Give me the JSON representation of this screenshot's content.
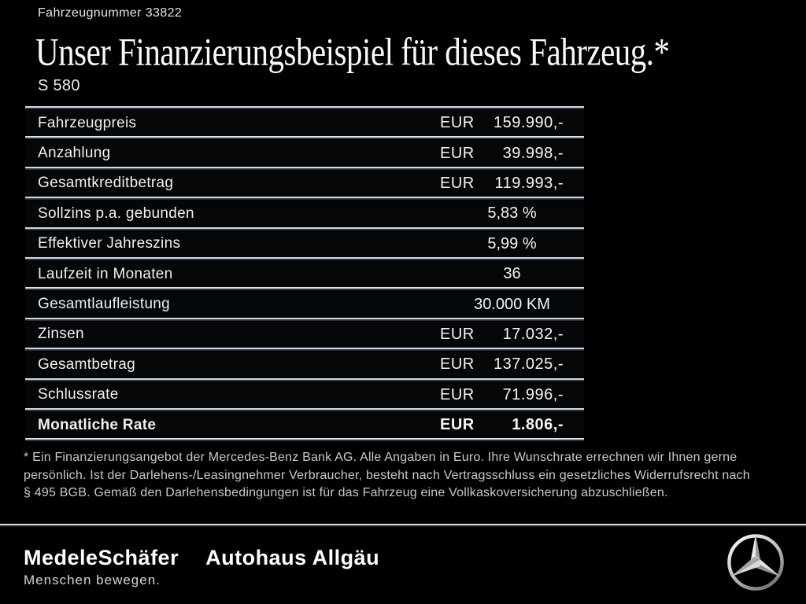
{
  "header": {
    "vehicle_number": "Fahrzeugnummer 33822",
    "title": "Unser Finanzierungsbeispiel für dieses Fahrzeug.*",
    "model": "S 580"
  },
  "table": {
    "rows": [
      {
        "label": "Fahrzeugpreis",
        "currency": "EUR",
        "value": "159.990,-"
      },
      {
        "label": "Anzahlung",
        "currency": "EUR",
        "value": "39.998,-"
      },
      {
        "label": "Gesamtkreditbetrag",
        "currency": "EUR",
        "value": "119.993,-"
      },
      {
        "label": "Sollzins p.a. gebunden",
        "value": "5,83 %"
      },
      {
        "label": "Effektiver Jahreszins",
        "value": "5,99 %"
      },
      {
        "label": "Laufzeit in Monaten",
        "value": "36"
      },
      {
        "label": "Gesamtlaufleistung",
        "value": "30.000 KM"
      },
      {
        "label": "Zinsen",
        "currency": "EUR",
        "value": "17.032,-"
      },
      {
        "label": "Gesamtbetrag",
        "currency": "EUR",
        "value": "137.025,-"
      },
      {
        "label": "Schlussrate",
        "currency": "EUR",
        "value": "71.996,-"
      },
      {
        "label": "Monatliche Rate",
        "currency": "EUR",
        "value": "1.806,-",
        "bold": true
      }
    ]
  },
  "footnote": {
    "lines": [
      "* Ein Finanzierungsangebot der Mercedes-Benz Bank AG. Alle Angaben in Euro. Ihre Wunschrate errechnen wir Ihnen gerne",
      "persönlich. Ist der Darlehens-/Leasingnehmer Verbraucher, besteht nach Vertragsschluss ein gesetzliches Widerrufsrecht nach",
      "§ 495 BGB. Gemäß den Darlehensbedingungen ist für das Fahrzeug eine Vollkaskoversicherung abzuschließen."
    ]
  },
  "footer": {
    "dealer_primary": "MedeleSchäfer",
    "dealer_secondary": "Autohaus Allgäu",
    "tagline": "Menschen bewegen.",
    "brand_icon": "mercedes-star-icon"
  },
  "colors": {
    "background": "#000000",
    "text": "#f2f2f2",
    "separator_light": "#d3d8de",
    "separator_shadow": "#343b49",
    "footnote_text": "#c9c9c9",
    "star_silver": "#d9d9d9"
  }
}
